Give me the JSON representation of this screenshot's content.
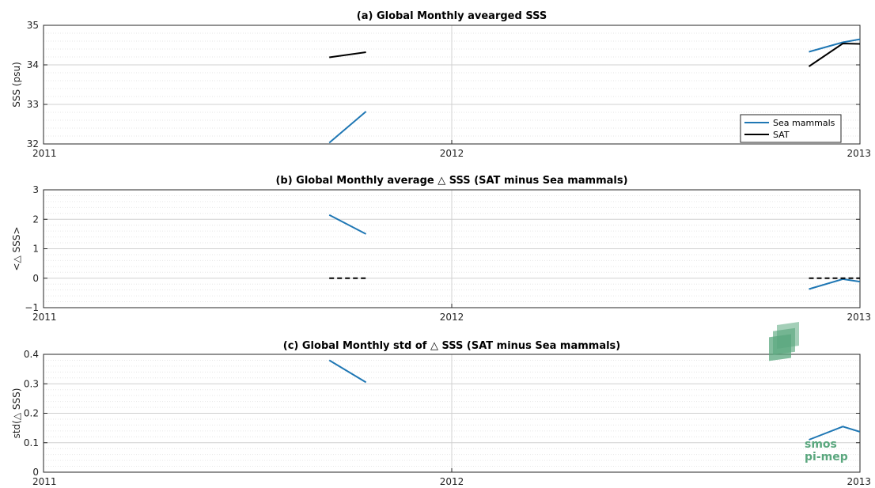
{
  "logo": {
    "line1": "smos",
    "line2": "pi-mep"
  },
  "colors": {
    "sea": "#1f77b4",
    "sat": "#000000",
    "grid": "#d9d9d9",
    "logo": "#5aa77e"
  },
  "chart_data": [
    {
      "id": "a",
      "type": "line",
      "title": "(a) Global Monthly avearged SSS",
      "xlabel": "",
      "ylabel": "SSS (psu)",
      "xlim": [
        2011.0,
        2013.0
      ],
      "ylim": [
        32,
        35
      ],
      "xticks": [
        2011,
        2012,
        2013
      ],
      "xticklabels": [
        "2011",
        "2012",
        "2013"
      ],
      "yticks": [
        32,
        33,
        34,
        35
      ],
      "yticklabels": [
        "32",
        "33",
        "34",
        "35"
      ],
      "grid": true,
      "legend": {
        "placement": "bottom-right",
        "entries": [
          "Sea mammals",
          "SAT"
        ]
      },
      "series": [
        {
          "name": "Sea mammals",
          "color": "#1f77b4",
          "style": "solid",
          "segments": [
            [
              [
                2011.7,
                32.03
              ],
              [
                2011.79,
                32.82
              ]
            ],
            [
              [
                2012.875,
                34.33
              ],
              [
                2012.958,
                34.57
              ],
              [
                2013.04,
                34.72
              ]
            ]
          ]
        },
        {
          "name": "SAT",
          "color": "#000000",
          "style": "solid",
          "segments": [
            [
              [
                2011.7,
                34.19
              ],
              [
                2011.79,
                34.32
              ]
            ],
            [
              [
                2012.875,
                33.96
              ],
              [
                2012.958,
                34.54
              ],
              [
                2013.04,
                34.52
              ]
            ]
          ]
        }
      ]
    },
    {
      "id": "b",
      "type": "line",
      "title": "(b) Global Monthly average △ SSS (SAT minus Sea mammals)",
      "xlabel": "",
      "ylabel": "<△ SSS>",
      "xlim": [
        2011.0,
        2013.0
      ],
      "ylim": [
        -1,
        3
      ],
      "xticks": [
        2011,
        2012,
        2013
      ],
      "xticklabels": [
        "2011",
        "2012",
        "2013"
      ],
      "yticks": [
        -1,
        0,
        1,
        2,
        3
      ],
      "yticklabels": [
        "−1",
        "0",
        "1",
        "2",
        "3"
      ],
      "grid": true,
      "series": [
        {
          "color": "#1f77b4",
          "style": "solid",
          "segments": [
            [
              [
                2011.7,
                2.15
              ],
              [
                2011.79,
                1.5
              ]
            ],
            [
              [
                2012.875,
                -0.37
              ],
              [
                2012.958,
                -0.03
              ],
              [
                2013.04,
                -0.2
              ]
            ]
          ]
        },
        {
          "color": "#000000",
          "style": "dashed",
          "segments": [
            [
              [
                2011.7,
                0.0
              ],
              [
                2011.79,
                0.0
              ]
            ],
            [
              [
                2012.875,
                0.0
              ],
              [
                2013.04,
                0.0
              ]
            ]
          ]
        }
      ]
    },
    {
      "id": "c",
      "type": "line",
      "title": "(c) Global Monthly std of △ SSS (SAT minus Sea mammals)",
      "xlabel": "",
      "ylabel": "std(△ SSS)",
      "xlim": [
        2011.0,
        2013.0
      ],
      "ylim": [
        0,
        0.4
      ],
      "xticks": [
        2011,
        2012,
        2013
      ],
      "xticklabels": [
        "2011",
        "2012",
        "2013"
      ],
      "yticks": [
        0,
        0.1,
        0.2,
        0.3,
        0.4
      ],
      "yticklabels": [
        "0",
        "0.1",
        "0.2",
        "0.3",
        "0.4"
      ],
      "grid": true,
      "series": [
        {
          "color": "#1f77b4",
          "style": "solid",
          "segments": [
            [
              [
                2011.7,
                0.38
              ],
              [
                2011.79,
                0.305
              ]
            ],
            [
              [
                2012.875,
                0.11
              ],
              [
                2012.958,
                0.155
              ],
              [
                2013.04,
                0.12
              ]
            ]
          ]
        }
      ]
    }
  ]
}
